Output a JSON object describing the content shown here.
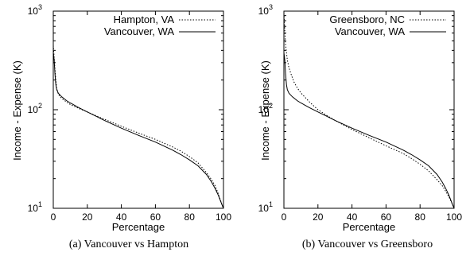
{
  "chart_data": [
    {
      "type": "line",
      "caption": "(a) Vancouver vs Hampton",
      "xlabel": "Percentage",
      "ylabel": "Income - Expense (K)",
      "xlim": [
        0,
        100
      ],
      "ylim": [
        10,
        1000
      ],
      "yscale": "log",
      "xticks": [
        "0",
        "20",
        "40",
        "60",
        "80",
        "100"
      ],
      "yticks": [
        {
          "base": "10",
          "exp": "1"
        },
        {
          "base": "10",
          "exp": "2"
        },
        {
          "base": "10",
          "exp": "3"
        }
      ],
      "grid": false,
      "legend_position": "top-right",
      "series": [
        {
          "name": "Hampton, VA",
          "style": "dotted",
          "color": "#000000",
          "x": [
            0,
            0.5,
            1,
            1.5,
            2,
            3,
            5,
            8,
            10,
            15,
            20,
            25,
            30,
            40,
            50,
            60,
            70,
            75,
            80,
            85,
            90,
            93,
            95,
            97,
            99,
            100
          ],
          "y": [
            450,
            340,
            260,
            200,
            165,
            143,
            130,
            119,
            113,
            103,
            95,
            87,
            80,
            68,
            58,
            50,
            42,
            38,
            33.5,
            29,
            23,
            19.5,
            17,
            14,
            11,
            10
          ]
        },
        {
          "name": "Vancouver, WA",
          "style": "solid",
          "color": "#000000",
          "x": [
            0,
            0.5,
            1,
            1.5,
            2,
            3,
            5,
            8,
            10,
            15,
            20,
            25,
            30,
            40,
            50,
            60,
            70,
            75,
            80,
            85,
            90,
            93,
            95,
            97,
            99,
            100
          ],
          "y": [
            380,
            320,
            230,
            180,
            160,
            147,
            135,
            123,
            117,
            105,
            95,
            86,
            78,
            65,
            55,
            47,
            39,
            35,
            31,
            27,
            22,
            18.5,
            16,
            13.5,
            11,
            10
          ]
        }
      ]
    },
    {
      "type": "line",
      "caption": "(b) Vancouver vs Greensboro",
      "xlabel": "Percentage",
      "ylabel": "Income - Expense (K)",
      "xlim": [
        0,
        100
      ],
      "ylim": [
        10,
        1000
      ],
      "yscale": "log",
      "xticks": [
        "0",
        "20",
        "40",
        "60",
        "80",
        "100"
      ],
      "yticks": [
        {
          "base": "10",
          "exp": "1"
        },
        {
          "base": "10",
          "exp": "2"
        },
        {
          "base": "10",
          "exp": "3"
        }
      ],
      "grid": false,
      "legend_position": "top-right",
      "series": [
        {
          "name": "Greensboro, NC",
          "style": "dotted",
          "color": "#000000",
          "x": [
            0,
            0.3,
            0.6,
            1,
            1.5,
            2,
            3,
            4,
            5,
            6,
            8,
            10,
            15,
            20,
            25,
            30,
            40,
            50,
            60,
            70,
            75,
            80,
            85,
            90,
            93,
            95,
            97,
            99,
            100
          ],
          "y": [
            950,
            780,
            600,
            460,
            380,
            320,
            265,
            235,
            210,
            190,
            165,
            148,
            120,
            100,
            88,
            78,
            63,
            52,
            43,
            36,
            32,
            28,
            24,
            19.5,
            17,
            15,
            13,
            11,
            10
          ]
        },
        {
          "name": "Vancouver, WA",
          "style": "solid",
          "color": "#000000",
          "x": [
            0,
            0.5,
            1,
            1.5,
            2,
            3,
            5,
            8,
            10,
            15,
            20,
            25,
            30,
            40,
            50,
            60,
            70,
            75,
            80,
            85,
            90,
            93,
            95,
            97,
            99,
            100
          ],
          "y": [
            380,
            320,
            230,
            180,
            160,
            147,
            135,
            123,
            117,
            105,
            95,
            86,
            78,
            65,
            55,
            47,
            39,
            35,
            31,
            27,
            22,
            18.5,
            16,
            13.5,
            11,
            10
          ]
        }
      ]
    }
  ]
}
